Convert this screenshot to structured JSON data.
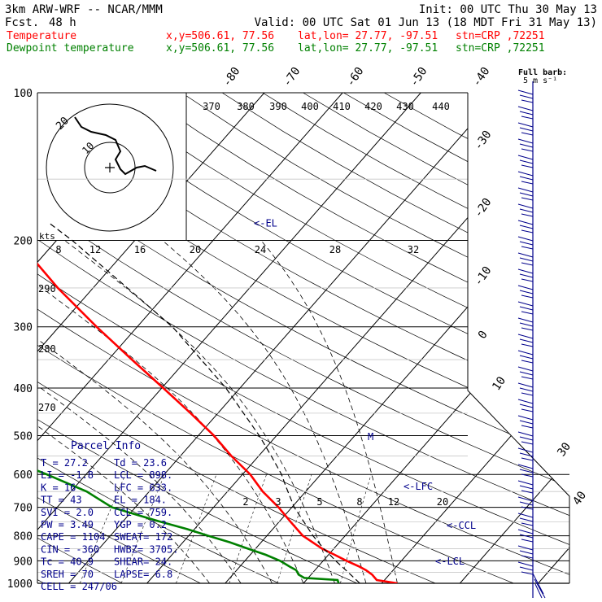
{
  "header": {
    "model": "3km ARW-WRF -- NCAR/MMM",
    "fcst_label": "Fcst.",
    "fcst_value": "48 h",
    "init": "Init: 00 UTC Thu 30 May 13",
    "valid": "Valid: 00 UTC Sat 01 Jun 13 (18 MDT Fri 31 May 13)"
  },
  "legend": [
    {
      "name": "Temperature",
      "coords": "x,y=506.61, 77.56",
      "latlon": "lat,lon= 27.77, -97.51",
      "stn": "stn=CRP ,72251",
      "color": "#ff0000"
    },
    {
      "name": "Dewpoint temperature",
      "coords": "x,y=506.61, 77.56",
      "latlon": "lat,lon= 27.77, -97.51",
      "stn": "stn=CRP ,72251",
      "color": "#008000"
    }
  ],
  "barb_note": {
    "line1": "Full barb:",
    "line2": "5 m s⁻¹"
  },
  "hodograph": {
    "units": "kts",
    "ring_labels": [
      "10",
      "20"
    ]
  },
  "chart_data": {
    "type": "line",
    "title": "",
    "pressure_levels": [
      100,
      200,
      300,
      400,
      500,
      600,
      700,
      800,
      900,
      1000
    ],
    "ylim": [
      100,
      1000
    ],
    "y_scale": "log-pressure",
    "xlim_bottom_C": [
      -14,
      41
    ],
    "isotherm_labels": [
      -80,
      -70,
      -60,
      -50,
      -40,
      -30,
      -20,
      -10,
      0,
      10,
      30,
      40
    ],
    "theta_e_labels": [
      370,
      380,
      390,
      400,
      410,
      420,
      430,
      440
    ],
    "hodo_speed_labels": [
      "8",
      "12",
      "16",
      "20",
      "24",
      "28",
      "32"
    ],
    "mixing_ratio_labels": [
      "2",
      "3",
      "5",
      "8",
      "12",
      "20"
    ],
    "left_labels": [
      "290",
      "280",
      "270"
    ],
    "series": [
      {
        "name": "Temperature",
        "color": "#ff0000",
        "p": [
          1000,
          985,
          960,
          940,
          925,
          900,
          875,
          850,
          800,
          750,
          700,
          650,
          600,
          550,
          500,
          450,
          400,
          350,
          300,
          250,
          200,
          175,
          150,
          125,
          110,
          100
        ],
        "t": [
          32.0,
          29.0,
          27.8,
          26.5,
          25.3,
          23.0,
          20.8,
          18.5,
          14.6,
          11.5,
          8.3,
          4.5,
          1.0,
          -3.5,
          -8.0,
          -13.5,
          -19.8,
          -27.0,
          -35.2,
          -44.5,
          -55.0,
          -61.0,
          -67.0,
          -71.0,
          -71.3,
          -70.0
        ]
      },
      {
        "name": "Dewpoint temperature",
        "color": "#008000",
        "p": [
          1000,
          985,
          975,
          960,
          940,
          925,
          900,
          875,
          850,
          825,
          800,
          775,
          750,
          725,
          700,
          650,
          600,
          550,
          500,
          450,
          400,
          350,
          300,
          250,
          200,
          175,
          150,
          125,
          110,
          100
        ],
        "t": [
          24.5,
          24.0,
          19.5,
          18.4,
          17.6,
          16.4,
          14.5,
          12.0,
          9.0,
          6.0,
          2.5,
          -1.0,
          -5.0,
          -9.0,
          -13.0,
          -18.0,
          -25.0,
          -33.0,
          -40.0,
          -46.0,
          -51.0,
          -57.0,
          -63.0,
          -70.0,
          -76.0,
          -80.0,
          -86.0,
          -92.0,
          -95.0,
          -96.0
        ]
      },
      {
        "name": "Parcel",
        "color": "#000000",
        "p": [
          1000,
          950,
          900,
          868,
          850,
          800,
          700,
          633,
          600,
          550,
          500,
          400,
          300,
          200,
          184
        ],
        "t": [
          27.2,
          24.5,
          21.6,
          19.8,
          18.7,
          15.9,
          10.3,
          6.8,
          5.0,
          1.6,
          -2.2,
          -11.8,
          -25.5,
          -48.0,
          -53.0
        ]
      }
    ],
    "levels": [
      {
        "label": "<-EL",
        "p": 184
      },
      {
        "label": "<-LFC",
        "p": 633
      },
      {
        "label": "<-CCL",
        "p": 759
      },
      {
        "label": "<-LCL",
        "p": 898
      }
    ],
    "dashed_zero_marker": "M"
  },
  "parcel_info": {
    "title": "Parcel Info",
    "rows": [
      [
        "T  =   27.2",
        "Td =  23.6"
      ],
      [
        "LI =   -1.8",
        "LCL =  898."
      ],
      [
        "K  =     16",
        "LFC =  633."
      ],
      [
        "TT =     43",
        "EL  =  184."
      ],
      [
        "SVI =   2.0",
        "CCL =  759."
      ],
      [
        "PW =   3.49",
        "YGP =   0.2"
      ],
      [
        "CAPE =  1104",
        "SWEAT=  172"
      ],
      [
        "CIN =   -360",
        "HWBZ= 3705."
      ],
      [
        "Tc =   40.9",
        "SHEAR=  24."
      ],
      [
        "SREH =    70",
        "LAPSE=  6.8"
      ],
      [
        "CELL = 247/06",
        ""
      ]
    ]
  }
}
